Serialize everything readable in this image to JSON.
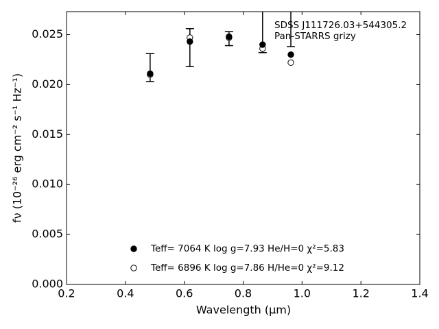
{
  "chart_data": {
    "type": "scatter",
    "x_label": "Wavelength (μm)",
    "y_label": "fν (10⁻²⁶ erg cm⁻² s⁻¹ Hz⁻¹)",
    "annotations": [
      "SDSS J111726.03+544305.2",
      "Pan-STARRS grizy"
    ],
    "x": [
      0.484,
      0.619,
      0.752,
      0.866,
      0.962
    ],
    "xlim": [
      0.2,
      1.4
    ],
    "xticks": [
      0.2,
      0.4,
      0.6,
      0.8,
      {
        "value": 1.0,
        "label": "1.0"
      },
      1.2,
      1.4
    ],
    "ylim": [
      0,
      0.0273
    ],
    "yticks": [
      {
        "value": 0,
        "label": "0.000"
      },
      {
        "value": 0.005,
        "label": "0.005"
      },
      {
        "value": 0.01,
        "label": "0.010"
      },
      {
        "value": 0.015,
        "label": "0.015"
      },
      {
        "value": 0.02,
        "label": "0.020"
      },
      {
        "value": 0.025,
        "label": "0.025"
      }
    ],
    "observed": {
      "color": "#000000",
      "values": [
        0.0217,
        0.0237,
        0.0246,
        0.0258,
        0.0272
      ],
      "errors": [
        0.0014,
        0.0019,
        0.0007,
        0.0026,
        0.0034
      ]
    },
    "series": [
      {
        "name": "Teff=  7064 K  log g=7.93  He/H=0  χ²=5.83",
        "marker": "filled",
        "color": "#000000",
        "values": [
          0.0211,
          0.0243,
          0.0248,
          0.024,
          0.023
        ]
      },
      {
        "name": "Teff=  6896 K  log g=7.86  H/He=0  χ²=9.12",
        "marker": "open",
        "color": "#000000",
        "values": [
          0.021,
          0.0247,
          0.0247,
          0.0236,
          0.0222
        ]
      }
    ]
  }
}
